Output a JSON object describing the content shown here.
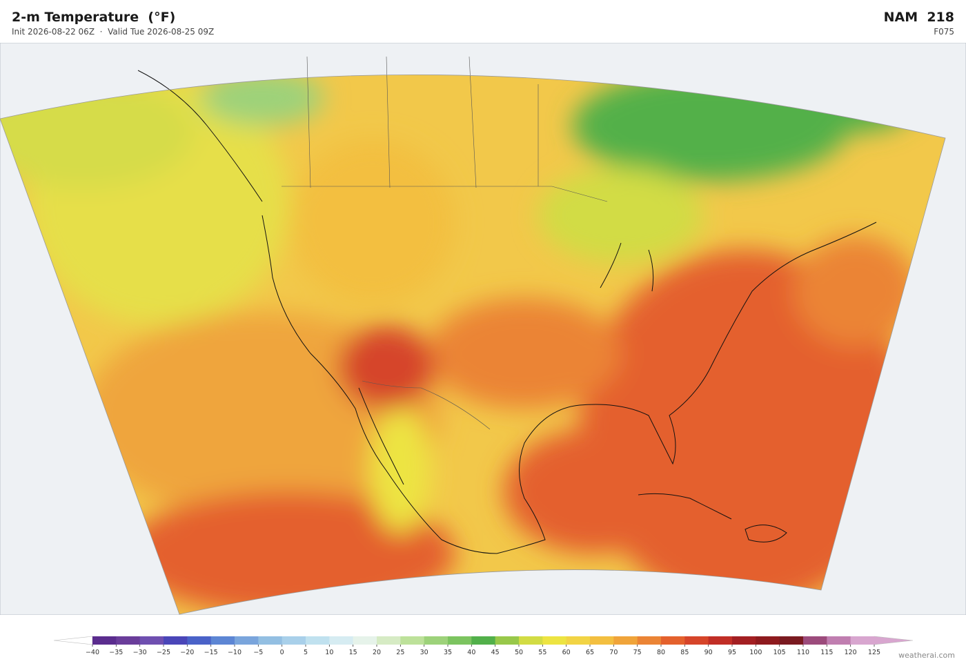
{
  "header": {
    "title": "2-m Temperature  (°F)",
    "subtitle": "Init 2026-08-22 06Z  ·  Valid Tue 2026-08-25 09Z",
    "model": "NAM  218",
    "forecast_hour": "F075"
  },
  "colorbar": {
    "ticks": [
      {
        "value": -40,
        "label": "−40"
      },
      {
        "value": -35,
        "label": "−35"
      },
      {
        "value": -30,
        "label": "−30"
      },
      {
        "value": -25,
        "label": "−25"
      },
      {
        "value": -20,
        "label": "−20"
      },
      {
        "value": -15,
        "label": "−15"
      },
      {
        "value": -10,
        "label": "−10"
      },
      {
        "value": -5,
        "label": "−5"
      },
      0,
      5,
      10,
      15,
      20,
      25,
      30,
      35,
      40,
      45,
      50,
      55,
      60,
      65,
      70,
      75,
      80,
      85,
      90,
      95,
      100,
      105,
      110,
      115,
      120,
      125
    ],
    "colors": [
      "#5b2d8e",
      "#6a3d9a",
      "#6f4fb0",
      "#4a46b8",
      "#4a62c8",
      "#5d86d4",
      "#7aa5dc",
      "#93bfe2",
      "#a9d0ea",
      "#c0e1ef",
      "#d6ecf2",
      "#e6f3ea",
      "#d6ebc4",
      "#bde19a",
      "#9dd27a",
      "#7cc460",
      "#52b04a",
      "#98c84a",
      "#d2dc44",
      "#ede442",
      "#f2d445",
      "#f3bf40",
      "#f0a43a",
      "#eb8435",
      "#e4612d",
      "#d6452a",
      "#c12e26",
      "#a31f22",
      "#8e1a1e",
      "#7a1a20",
      "#9c4b7c",
      "#c07eb0",
      "#d8a6cf"
    ],
    "under_color": "#ffffff",
    "over_color": "#d8a6cf"
  },
  "footer": {
    "watermark": "weatherai.com"
  }
}
